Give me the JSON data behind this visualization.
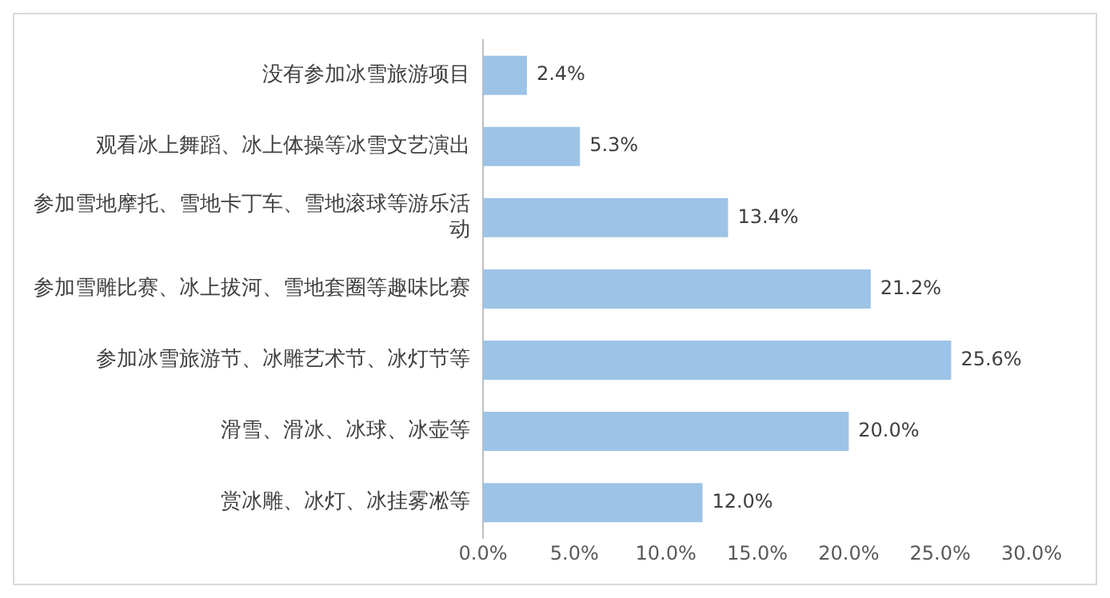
{
  "chart_data": {
    "type": "bar",
    "orientation": "horizontal",
    "categories": [
      "没有参加冰雪旅游项目",
      "观看冰上舞蹈、冰上体操等冰雪文艺演出",
      "参加雪地摩托、雪地卡丁车、雪地滚球等游乐活动",
      "参加雪雕比赛、冰上拔河、雪地套圈等趣味比赛",
      "参加冰雪旅游节、冰雕艺术节、冰灯节等",
      "滑雪、滑冰、冰球、冰壶等",
      "赏冰雕、冰灯、冰挂雾凇等"
    ],
    "values": [
      2.4,
      5.3,
      13.4,
      21.2,
      25.6,
      20.0,
      12.0
    ],
    "value_labels": [
      "2.4%",
      "5.3%",
      "13.4%",
      "21.2%",
      "25.6%",
      "20.0%",
      "12.0%"
    ],
    "color": "#9dc3e6",
    "xlim": [
      0,
      30
    ],
    "xticks": [
      {
        "value": 0,
        "label": "0.0%"
      },
      {
        "value": 5,
        "label": "5.0%"
      },
      {
        "value": 10,
        "label": "10.0%"
      },
      {
        "value": 15,
        "label": "15.0%"
      },
      {
        "value": 20,
        "label": "20.0%"
      },
      {
        "value": 25,
        "label": "25.0%"
      },
      {
        "value": 30,
        "label": "30.0%"
      }
    ],
    "grid": false,
    "legend": false
  }
}
